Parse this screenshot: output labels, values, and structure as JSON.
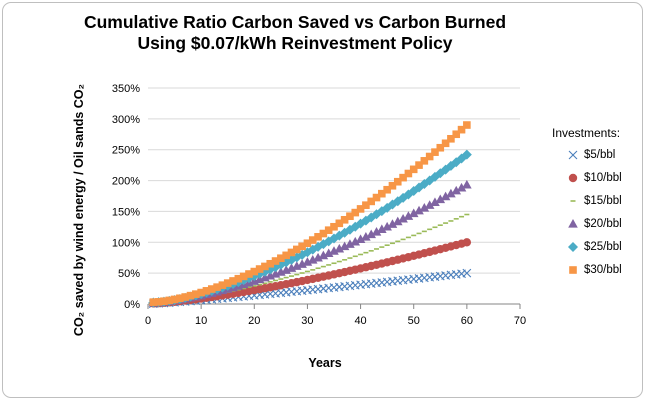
{
  "chart_data": {
    "type": "scatter",
    "title": [
      "Cumulative Ratio Carbon Saved vs Carbon Burned",
      "Using $0.07/kWh Reinvestment Policy"
    ],
    "xlabel": "Years",
    "ylabel": "CO₂ saved by wind energy / Oil sands CO₂",
    "xlim": [
      0,
      70
    ],
    "ylim": [
      0,
      350
    ],
    "y_unit": "percent",
    "x_ticks": [
      "0",
      "10",
      "20",
      "30",
      "40",
      "50",
      "60",
      "70"
    ],
    "y_ticks": [
      "0%",
      "50%",
      "100%",
      "150%",
      "200%",
      "250%",
      "300%",
      "350%"
    ],
    "grid": "horizontal",
    "legend_position": "right",
    "legend_title": "Investments:",
    "x": [
      1,
      2,
      3,
      4,
      5,
      6,
      7,
      8,
      9,
      10,
      11,
      12,
      13,
      14,
      15,
      16,
      17,
      18,
      19,
      20,
      21,
      22,
      23,
      24,
      25,
      26,
      27,
      28,
      29,
      30,
      31,
      32,
      33,
      34,
      35,
      36,
      37,
      38,
      39,
      40,
      41,
      42,
      43,
      44,
      45,
      46,
      47,
      48,
      49,
      50,
      51,
      52,
      53,
      54,
      55,
      56,
      57,
      58,
      59,
      60
    ],
    "series": [
      {
        "name": "$5/bbl",
        "marker": "x",
        "color": "#4a7ebb",
        "end_value": 50,
        "start_value": 0.5,
        "curve_power": 1.15
      },
      {
        "name": "$10/bbl",
        "marker": "circle",
        "color": "#c0504d",
        "end_value": 100,
        "start_value": 1.0,
        "curve_power": 1.35
      },
      {
        "name": "$15/bbl",
        "marker": "dash",
        "color": "#9bbb59",
        "end_value": 145,
        "start_value": 1.5,
        "curve_power": 1.45
      },
      {
        "name": "$20/bbl",
        "marker": "triangle",
        "color": "#8064a2",
        "end_value": 193,
        "start_value": 2.0,
        "curve_power": 1.5
      },
      {
        "name": "$25/bbl",
        "marker": "diamond",
        "color": "#4bacc6",
        "end_value": 242,
        "start_value": 2.5,
        "curve_power": 1.52
      },
      {
        "name": "$30/bbl",
        "marker": "square",
        "color": "#f79646",
        "end_value": 290,
        "start_value": 3.0,
        "curve_power": 1.55
      }
    ]
  }
}
